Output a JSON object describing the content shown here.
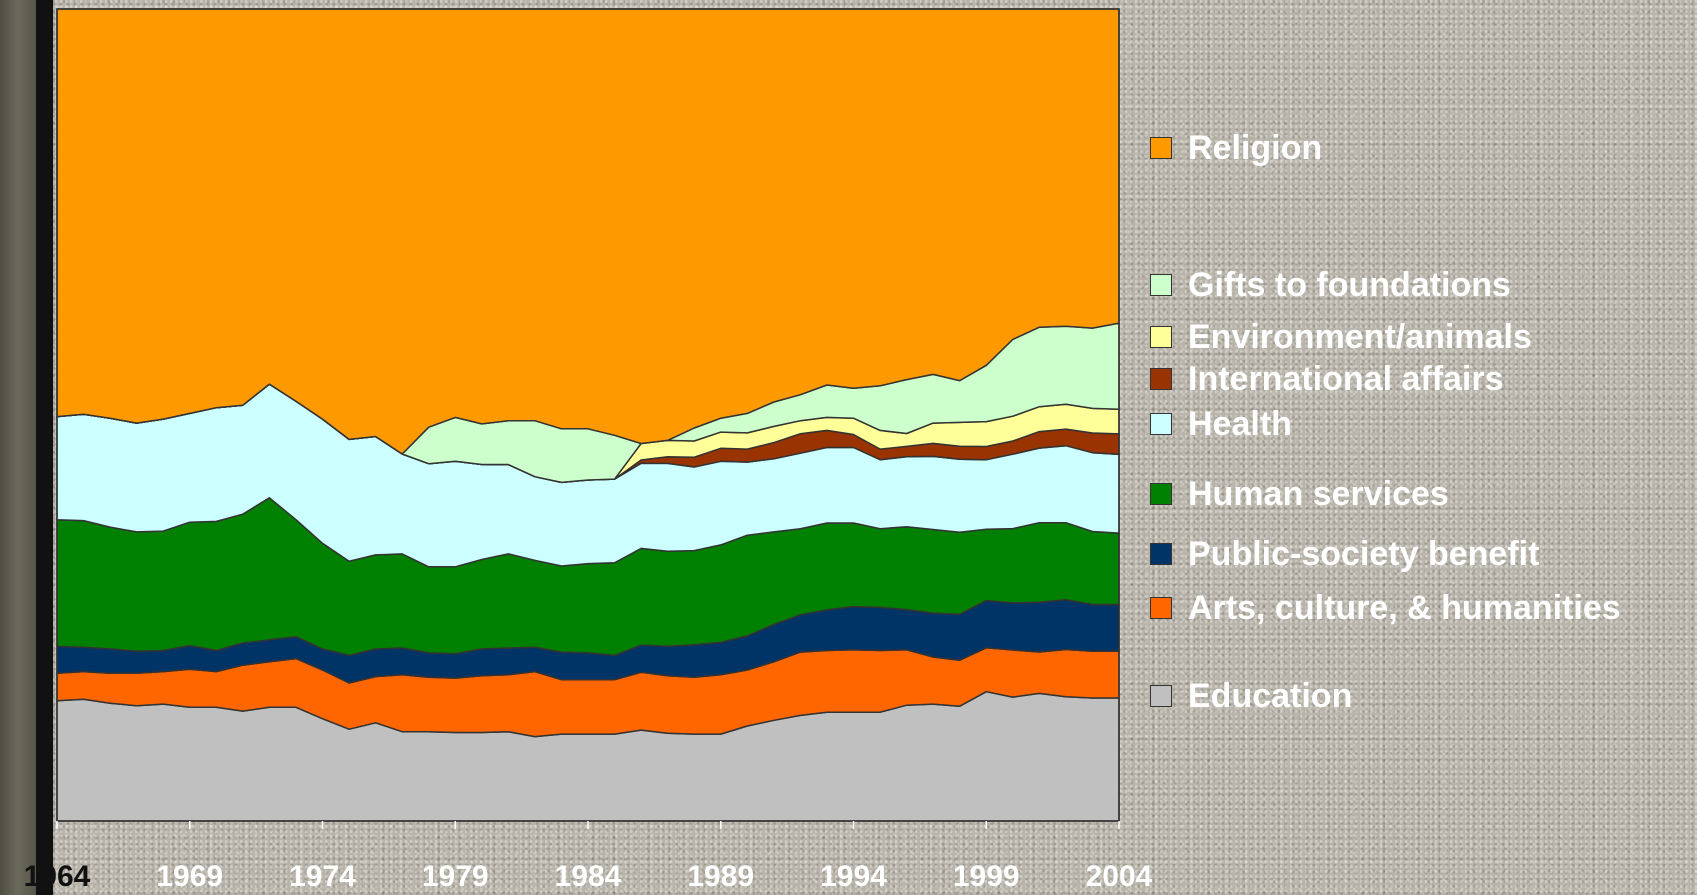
{
  "chart_data": {
    "type": "area",
    "stacking": "percent",
    "x": [
      1964,
      1965,
      1966,
      1967,
      1968,
      1969,
      1970,
      1971,
      1972,
      1973,
      1974,
      1975,
      1976,
      1977,
      1978,
      1979,
      1980,
      1981,
      1982,
      1983,
      1984,
      1985,
      1986,
      1987,
      1988,
      1989,
      1990,
      1991,
      1992,
      1993,
      1994,
      1995,
      1996,
      1997,
      1998,
      1999,
      2000,
      2001,
      2002,
      2003,
      2004
    ],
    "tick_labels": [
      "1964",
      "1969",
      "1974",
      "1979",
      "1984",
      "1989",
      "1994",
      "1999",
      "2004"
    ],
    "ylim": [
      0,
      100
    ],
    "legend_position": "right",
    "series": [
      {
        "name": "Education",
        "color": "#c0c0c0",
        "values": [
          14.8,
          15.0,
          14.5,
          14.2,
          14.4,
          14.0,
          14.0,
          13.4,
          14.0,
          14.0,
          12.6,
          11.3,
          12.1,
          11.0,
          11.0,
          10.9,
          10.9,
          11.0,
          10.4,
          10.7,
          10.7,
          10.7,
          11.0,
          10.7,
          10.7,
          10.7,
          11.7,
          12.4,
          13.0,
          13.4,
          13.4,
          13.4,
          14.4,
          14.4,
          14.0,
          15.6,
          15.0,
          15.4,
          15.0,
          15.0,
          15.0
        ]
      },
      {
        "name": "Arts, culture, & humanities",
        "color": "#ff6600",
        "values": [
          3.4,
          3.4,
          3.7,
          4.0,
          4.0,
          4.7,
          4.4,
          5.6,
          5.6,
          6.0,
          6.0,
          5.7,
          5.7,
          7.0,
          6.7,
          6.7,
          7.0,
          7.0,
          8.0,
          6.7,
          6.7,
          6.7,
          7.0,
          7.0,
          7.0,
          7.3,
          6.9,
          7.2,
          7.8,
          7.6,
          7.7,
          7.6,
          6.9,
          5.8,
          5.6,
          5.3,
          5.7,
          5.0,
          5.7,
          5.7,
          5.7
        ]
      },
      {
        "name": "Public-society benefit",
        "color": "#003366",
        "values": [
          3.3,
          3.0,
          3.0,
          2.7,
          2.6,
          2.9,
          2.6,
          2.7,
          2.7,
          2.7,
          2.6,
          3.4,
          3.4,
          3.3,
          3.0,
          3.0,
          3.3,
          3.3,
          3.0,
          3.4,
          3.3,
          3.0,
          3.3,
          3.6,
          4.0,
          4.0,
          4.2,
          4.6,
          4.6,
          5.0,
          5.3,
          5.3,
          5.0,
          5.4,
          5.6,
          5.7,
          5.7,
          6.0,
          6.0,
          5.7,
          5.7
        ]
      },
      {
        "name": "Human services",
        "color": "#008000",
        "values": [
          15.6,
          15.6,
          15.0,
          14.7,
          14.7,
          15.2,
          15.9,
          15.7,
          17.5,
          14.4,
          13.0,
          11.6,
          11.6,
          11.6,
          10.6,
          10.7,
          11.0,
          11.6,
          10.7,
          10.6,
          11.0,
          11.4,
          11.7,
          11.6,
          11.6,
          12.0,
          12.4,
          11.4,
          10.6,
          10.7,
          10.3,
          9.7,
          10.3,
          10.3,
          10.0,
          8.6,
          9.0,
          9.6,
          9.3,
          8.9,
          8.7
        ]
      },
      {
        "name": "Health",
        "color": "#ccffff",
        "values": [
          12.7,
          13.1,
          13.4,
          13.4,
          13.8,
          13.4,
          14.0,
          13.3,
          14.0,
          14.6,
          15.3,
          15.0,
          14.6,
          12.3,
          12.7,
          13.0,
          11.7,
          11.0,
          10.3,
          10.3,
          10.3,
          10.3,
          10.3,
          10.7,
          10.3,
          10.3,
          9.0,
          9.0,
          9.3,
          9.3,
          9.3,
          8.5,
          8.7,
          9.0,
          8.9,
          8.4,
          9.0,
          9.0,
          9.3,
          9.6,
          9.6
        ]
      },
      {
        "name": "International affairs",
        "color": "#993300",
        "values": [
          0,
          0,
          0,
          0,
          0,
          0,
          0,
          0,
          0,
          0,
          0,
          0,
          0,
          0,
          0,
          0,
          0,
          0,
          0,
          0,
          0,
          0,
          0.4,
          0.8,
          1.2,
          1.6,
          1.6,
          2.0,
          2.4,
          2.1,
          1.6,
          1.3,
          1.3,
          1.6,
          1.6,
          1.6,
          1.6,
          2.0,
          2.0,
          2.4,
          2.5
        ]
      },
      {
        "name": "Environment/animals",
        "color": "#ffff99",
        "values": [
          0,
          0,
          0,
          0,
          0,
          0,
          0,
          0,
          0,
          0,
          0,
          0,
          0,
          0,
          0,
          0,
          0,
          0,
          0,
          0,
          0,
          0,
          2.0,
          2.0,
          2.0,
          2.0,
          2.0,
          2.0,
          1.6,
          1.6,
          2.0,
          2.3,
          1.6,
          2.5,
          2.9,
          3.0,
          3.0,
          3.0,
          3.0,
          3.0,
          3.0
        ]
      },
      {
        "name": "Gifts to foundations",
        "color": "#ccffcc",
        "values": [
          0,
          0,
          0,
          0,
          0,
          0,
          0,
          0,
          0,
          0,
          0,
          0,
          0,
          0,
          4.5,
          5.4,
          5.0,
          5.4,
          6.9,
          6.6,
          6.3,
          5.4,
          0,
          0,
          1.6,
          1.7,
          2.4,
          3.0,
          3.2,
          4.0,
          3.7,
          5.5,
          6.7,
          6.0,
          5.1,
          6.8,
          9.3,
          9.6,
          9.4,
          9.8,
          10.5
        ]
      },
      {
        "name": "Religion",
        "color": "#ff9900",
        "values": [
          50.2,
          49.9,
          50.4,
          51.0,
          50.5,
          49.8,
          49.1,
          48.3,
          46.2,
          48.3,
          50.5,
          53.0,
          52.7,
          54.8,
          51.5,
          50.3,
          51.1,
          50.7,
          50.7,
          51.7,
          51.7,
          52.5,
          52.6,
          52.6,
          51.6,
          50.4,
          49.8,
          48.4,
          47.5,
          46.3,
          46.7,
          46.4,
          46.1,
          45.0,
          45.3,
          43.0,
          40.0,
          38.4,
          38.3,
          38.9,
          38.3
        ]
      }
    ],
    "legend_order": [
      "Religion",
      "Gifts to foundations",
      "Environment/animals",
      "International affairs",
      "Health",
      "Human services",
      "Public-society benefit",
      "Arts, culture, & humanities",
      "Education"
    ]
  },
  "legend": [
    {
      "label": "Religion",
      "color": "#ff9900"
    },
    {
      "label": "Gifts to foundations",
      "color": "#ccffcc"
    },
    {
      "label": "Environment/animals",
      "color": "#ffff99"
    },
    {
      "label": "International affairs",
      "color": "#993300"
    },
    {
      "label": "Health",
      "color": "#ccffff"
    },
    {
      "label": "Human services",
      "color": "#008000"
    },
    {
      "label": "Public-society benefit",
      "color": "#003366"
    },
    {
      "label": "Arts, culture, & humanities",
      "color": "#ff6600"
    },
    {
      "label": "Education",
      "color": "#c0c0c0"
    }
  ]
}
